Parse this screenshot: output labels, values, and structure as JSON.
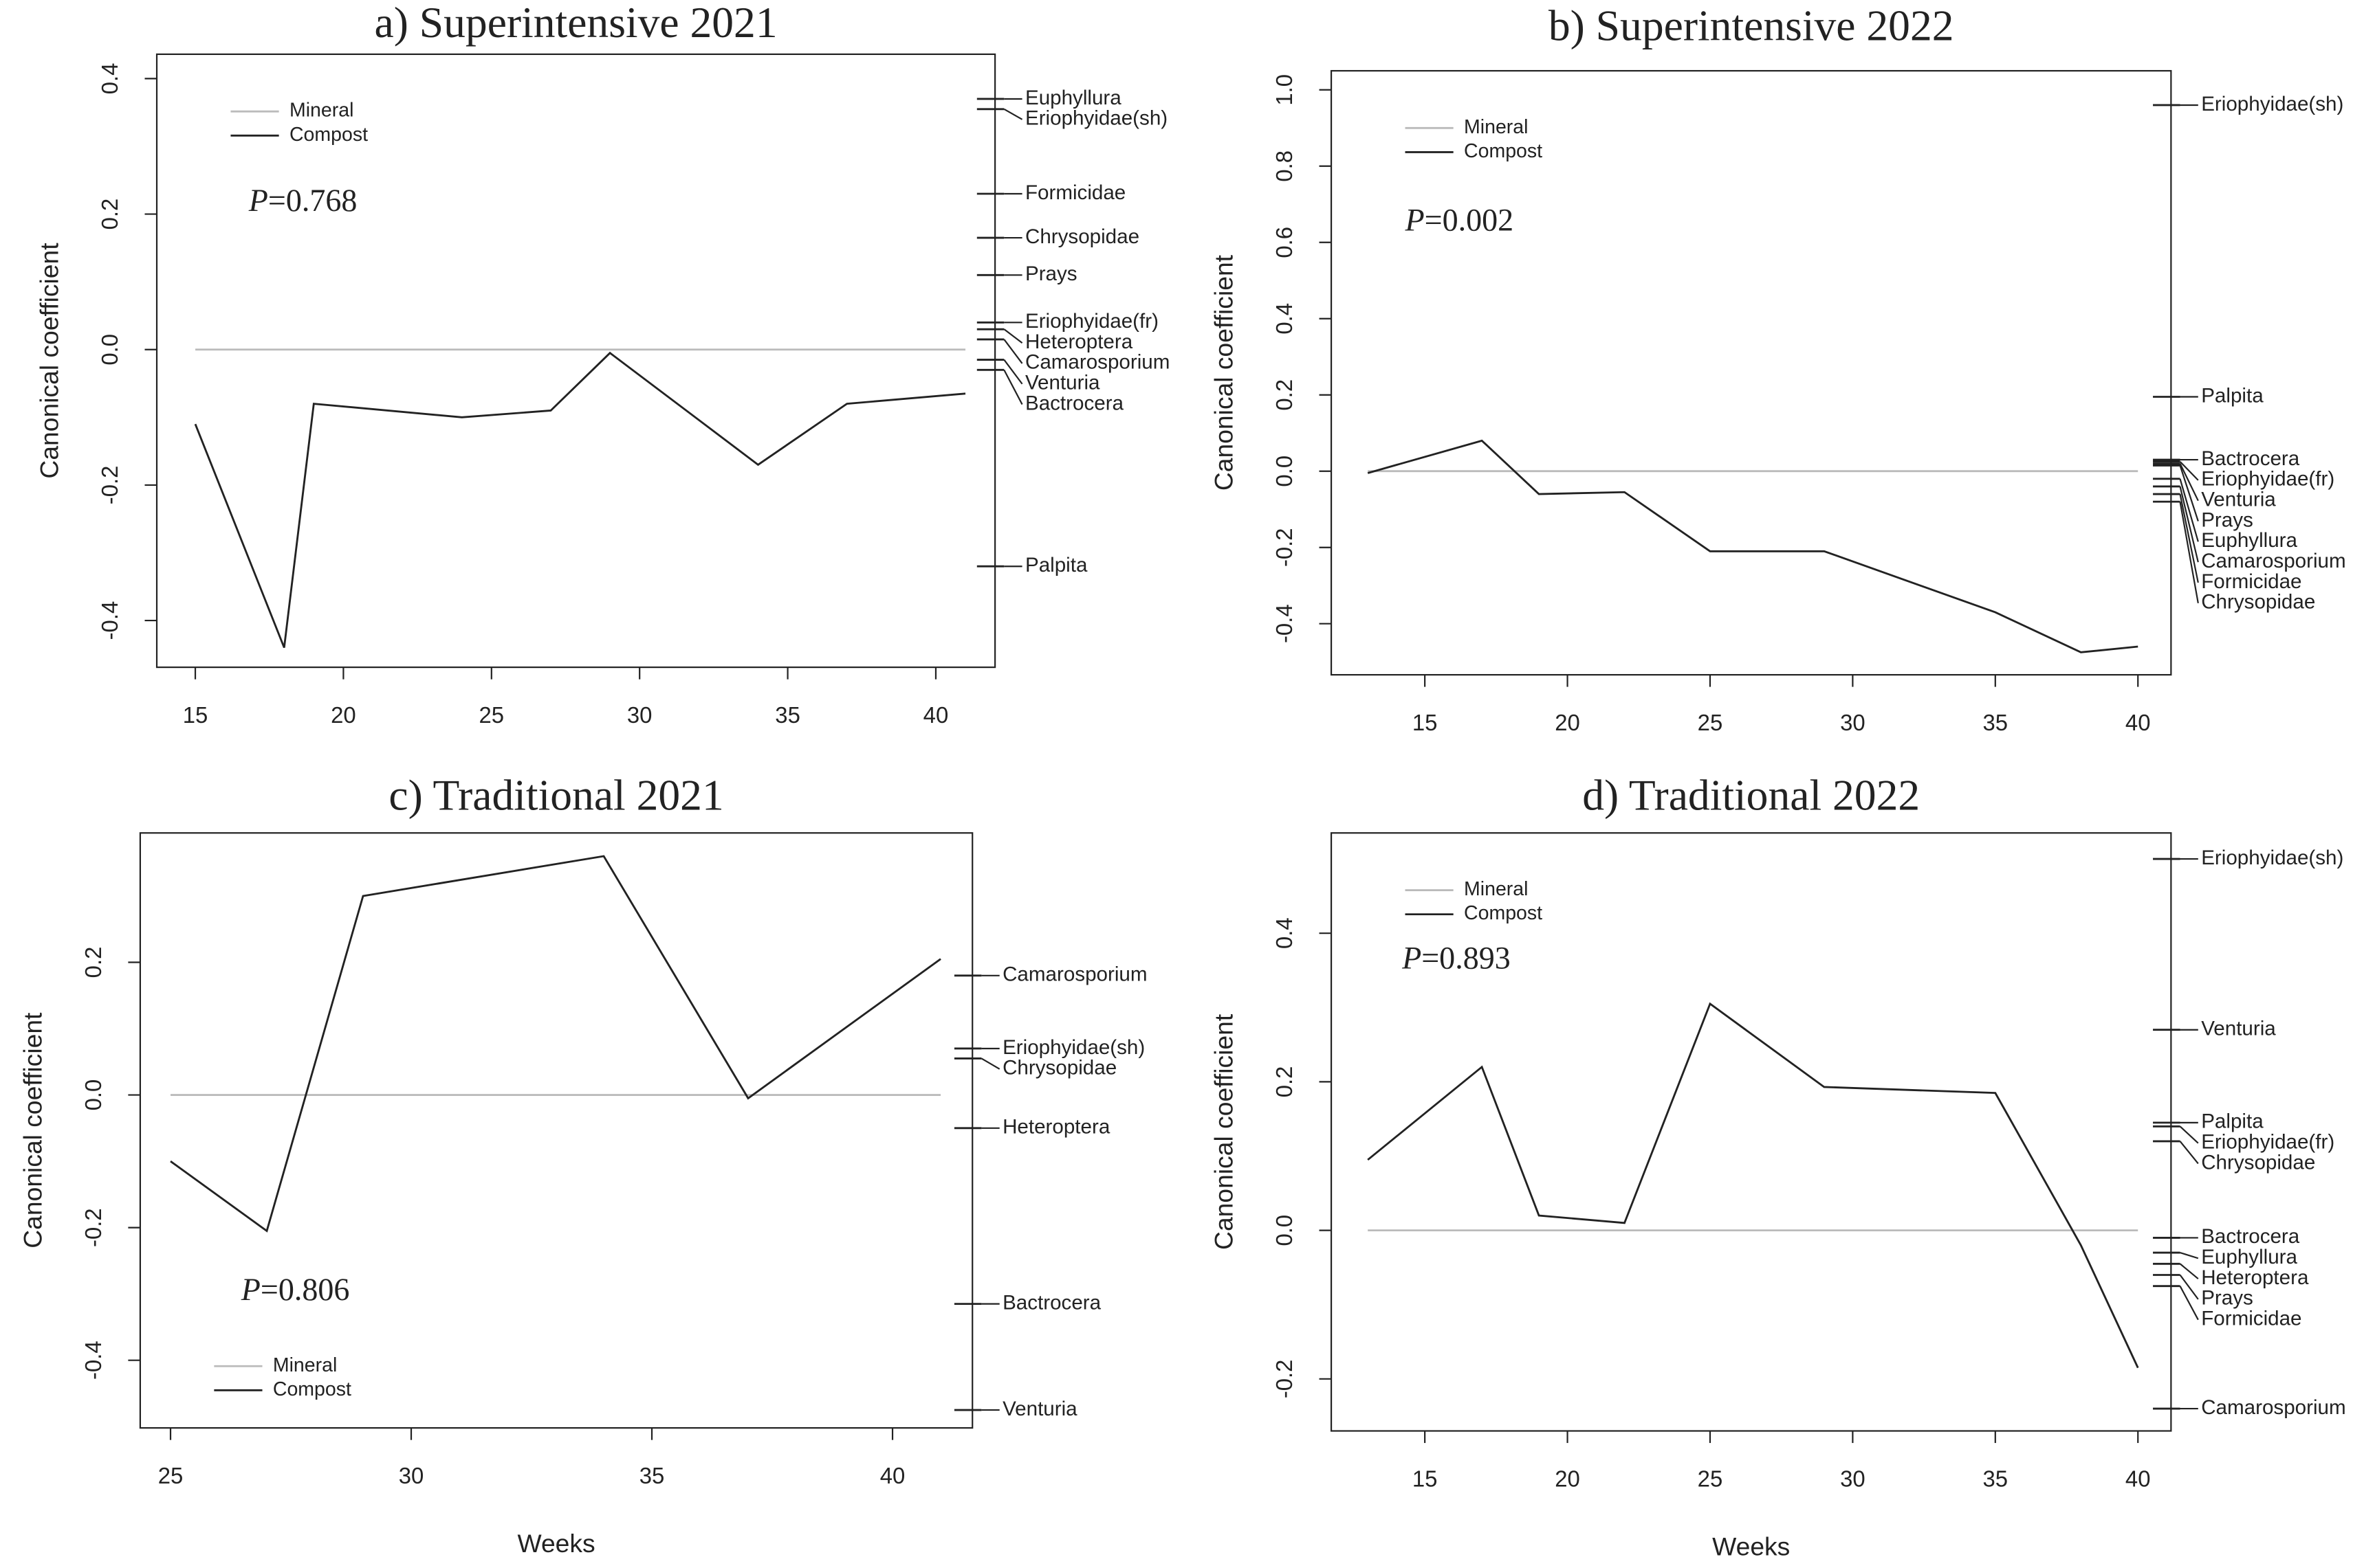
{
  "chart_data": [
    {
      "type": "line",
      "title": "a) Superintensive 2021",
      "y_label": "Canonical coefficient",
      "annotation": "P=0.768",
      "legend": "top-left",
      "x": [
        15,
        18,
        19,
        24,
        27,
        29,
        34,
        37,
        41
      ],
      "series": [
        {
          "name": "Mineral",
          "color": "#bbbbbb",
          "values": [
            0,
            0,
            0,
            0,
            0,
            0,
            0,
            0,
            0
          ]
        },
        {
          "name": "Compost",
          "color": "#222222",
          "values": [
            -0.11,
            -0.44,
            -0.08,
            -0.1,
            -0.09,
            -0.005,
            -0.17,
            -0.08,
            -0.065
          ]
        }
      ],
      "xlim": [
        13.7,
        42
      ],
      "xticks": [
        15,
        20,
        25,
        30,
        35,
        40
      ],
      "ylim": [
        -0.469,
        0.436
      ],
      "yticks": [
        -0.4,
        -0.2,
        {
          "value": 0,
          "label": "0.0"
        },
        0.2,
        0.4
      ],
      "species": [
        {
          "name": "Euphyllura",
          "value": 0.37
        },
        {
          "name": "Eriophyidae(sh)",
          "value": 0.355
        },
        {
          "name": "Formicidae",
          "value": 0.23
        },
        {
          "name": "Chrysopidae",
          "value": 0.165
        },
        {
          "name": "Prays",
          "value": 0.11
        },
        {
          "name": "Eriophyidae(fr)",
          "value": 0.04
        },
        {
          "name": "Heteroptera",
          "value": 0.03
        },
        {
          "name": "Camarosporium",
          "value": 0.015
        },
        {
          "name": "Venturia",
          "value": -0.015
        },
        {
          "name": "Bactrocera",
          "value": -0.03
        },
        {
          "name": "Palpita",
          "value": -0.32
        }
      ]
    },
    {
      "type": "line",
      "title": "b) Superintensive 2022",
      "y_label": "Canonical coefficient",
      "annotation": "P=0.002",
      "legend": "top-left",
      "x": [
        13,
        17,
        19,
        22,
        25,
        29,
        35,
        38,
        40
      ],
      "series": [
        {
          "name": "Mineral",
          "color": "#bbbbbb",
          "values": [
            0,
            0,
            0,
            0,
            0,
            0,
            0,
            0,
            0
          ]
        },
        {
          "name": "Compost",
          "color": "#222222",
          "values": [
            -0.005,
            0.08,
            -0.06,
            -0.055,
            -0.21,
            -0.21,
            -0.37,
            -0.475,
            -0.46
          ]
        }
      ],
      "xlim": [
        11.72,
        41.16
      ],
      "xticks": [
        15,
        20,
        25,
        30,
        35,
        40
      ],
      "ylim": [
        -0.534,
        1.05
      ],
      "yticks": [
        -0.4,
        -0.2,
        {
          "value": 0,
          "label": "0.0"
        },
        0.2,
        0.4,
        0.6,
        0.8,
        {
          "value": 1,
          "label": "1.0"
        }
      ],
      "species": [
        {
          "name": "Eriophyidae(sh)",
          "value": 0.96
        },
        {
          "name": "Palpita",
          "value": 0.195
        },
        {
          "name": "Bactrocera",
          "value": 0.03
        },
        {
          "name": "Eriophyidae(fr)",
          "value": 0.025
        },
        {
          "name": "Venturia",
          "value": 0.02
        },
        {
          "name": "Prays",
          "value": 0.015
        },
        {
          "name": "Euphyllura",
          "value": -0.02
        },
        {
          "name": "Camarosporium",
          "value": -0.04
        },
        {
          "name": "Formicidae",
          "value": -0.06
        },
        {
          "name": "Chrysopidae",
          "value": -0.08
        }
      ]
    },
    {
      "type": "line",
      "title": "c) Traditional 2021",
      "x_label": "Weeks",
      "y_label": "Canonical coefficient",
      "annotation": "P=0.806",
      "legend": "bottom-left",
      "x": [
        25,
        27,
        29,
        34,
        37,
        41
      ],
      "series": [
        {
          "name": "Mineral",
          "color": "#bbbbbb",
          "values": [
            0,
            0,
            0,
            0,
            0,
            0
          ]
        },
        {
          "name": "Compost",
          "color": "#222222",
          "values": [
            -0.1,
            -0.205,
            0.3,
            0.36,
            -0.005,
            0.205
          ]
        }
      ],
      "xlim": [
        24.37,
        41.66
      ],
      "xticks": [
        25,
        30,
        35,
        40
      ],
      "ylim": [
        -0.502,
        0.395
      ],
      "yticks": [
        -0.4,
        -0.2,
        {
          "value": 0,
          "label": "0.0"
        },
        0.2
      ],
      "species": [
        {
          "name": "Camarosporium",
          "value": 0.18
        },
        {
          "name": "Eriophyidae(sh)",
          "value": 0.07
        },
        {
          "name": "Chrysopidae",
          "value": 0.055
        },
        {
          "name": "Heteroptera",
          "value": -0.05
        },
        {
          "name": "Bactrocera",
          "value": -0.315
        },
        {
          "name": "Venturia",
          "value": -0.475
        }
      ]
    },
    {
      "type": "line",
      "title": "d) Traditional 2022",
      "x_label": "Weeks",
      "y_label": "Canonical coefficient",
      "annotation": "P=0.893",
      "legend": "top-left",
      "x": [
        13,
        17,
        19,
        22,
        25,
        29,
        35,
        38,
        40
      ],
      "series": [
        {
          "name": "Mineral",
          "color": "#bbbbbb",
          "values": [
            0,
            0,
            0,
            0,
            0,
            0,
            0,
            0,
            0
          ]
        },
        {
          "name": "Compost",
          "color": "#222222",
          "values": [
            0.095,
            0.22,
            0.02,
            0.01,
            0.305,
            0.193,
            0.185,
            -0.02,
            -0.185
          ]
        }
      ],
      "xlim": [
        11.72,
        41.16
      ],
      "xticks": [
        15,
        20,
        25,
        30,
        35,
        40
      ],
      "ylim": [
        -0.27,
        0.535
      ],
      "yticks": [
        -0.2,
        {
          "value": 0,
          "label": "0.0"
        },
        0.2,
        0.4
      ],
      "species": [
        {
          "name": "Eriophyidae(sh)",
          "value": 0.5
        },
        {
          "name": "Venturia",
          "value": 0.27
        },
        {
          "name": "Palpita",
          "value": 0.145
        },
        {
          "name": "Eriophyidae(fr)",
          "value": 0.14
        },
        {
          "name": "Chrysopidae",
          "value": 0.12
        },
        {
          "name": "Bactrocera",
          "value": -0.01
        },
        {
          "name": "Euphyllura",
          "value": -0.03
        },
        {
          "name": "Heteroptera",
          "value": -0.045
        },
        {
          "name": "Prays",
          "value": -0.06
        },
        {
          "name": "Formicidae",
          "value": -0.075
        },
        {
          "name": "Camarosporium",
          "value": -0.24
        }
      ]
    }
  ]
}
